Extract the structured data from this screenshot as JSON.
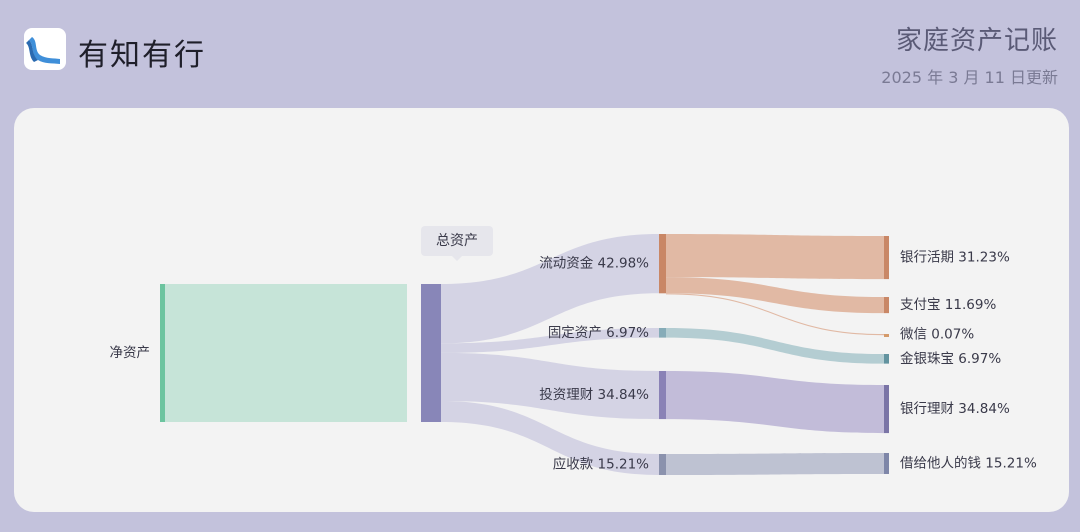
{
  "header": {
    "brand": "有知有行",
    "title": "家庭资产记账",
    "date": "2025 年 3 月 11 日更新"
  },
  "tag_label": "总资产",
  "chart_data": {
    "type": "sankey",
    "nodes": [
      {
        "id": "net",
        "label": "净资产"
      },
      {
        "id": "total",
        "label": "总资产"
      },
      {
        "id": "liquid",
        "label": "流动资金",
        "pct": 42.98
      },
      {
        "id": "fixed",
        "label": "固定资产",
        "pct": 6.97
      },
      {
        "id": "invest",
        "label": "投资理财",
        "pct": 34.84
      },
      {
        "id": "receivable",
        "label": "应收款",
        "pct": 15.21
      },
      {
        "id": "bank_demand",
        "label": "银行活期",
        "pct": 31.23
      },
      {
        "id": "alipay",
        "label": "支付宝",
        "pct": 11.69
      },
      {
        "id": "wechat",
        "label": "微信",
        "pct": 0.07
      },
      {
        "id": "gold",
        "label": "金银珠宝",
        "pct": 6.97
      },
      {
        "id": "bank_wm",
        "label": "银行理财",
        "pct": 34.84
      },
      {
        "id": "loan",
        "label": "借给他人的钱",
        "pct": 15.21
      }
    ],
    "links": [
      {
        "source": "net",
        "target": "total",
        "value": 100
      },
      {
        "source": "total",
        "target": "liquid",
        "value": 42.98
      },
      {
        "source": "total",
        "target": "fixed",
        "value": 6.97
      },
      {
        "source": "total",
        "target": "invest",
        "value": 34.84
      },
      {
        "source": "total",
        "target": "receivable",
        "value": 15.21
      },
      {
        "source": "liquid",
        "target": "bank_demand",
        "value": 31.23
      },
      {
        "source": "liquid",
        "target": "alipay",
        "value": 11.69
      },
      {
        "source": "liquid",
        "target": "wechat",
        "value": 0.07
      },
      {
        "source": "fixed",
        "target": "gold",
        "value": 6.97
      },
      {
        "source": "invest",
        "target": "bank_wm",
        "value": 34.84
      },
      {
        "source": "receivable",
        "target": "loan",
        "value": 15.21
      }
    ]
  },
  "colors": {
    "net": "#6cc49f",
    "net_fill": "#c6e4d8",
    "total": "#8886b8",
    "liquid": "#c98766",
    "fixed": "#86acb8",
    "invest": "#8a82b6",
    "receivable": "#8b92ad",
    "wechat": "#d49a6a",
    "gold": "#62939f",
    "bank_wm": "#7a74a6",
    "loan": "#7e86a8",
    "flow_total": "#d4d3e4",
    "flow_liquid": "#e1b9a4",
    "flow_fixed": "#b4cdd2",
    "flow_invest": "#c2bcd9",
    "flow_receivable": "#bec2d2"
  }
}
